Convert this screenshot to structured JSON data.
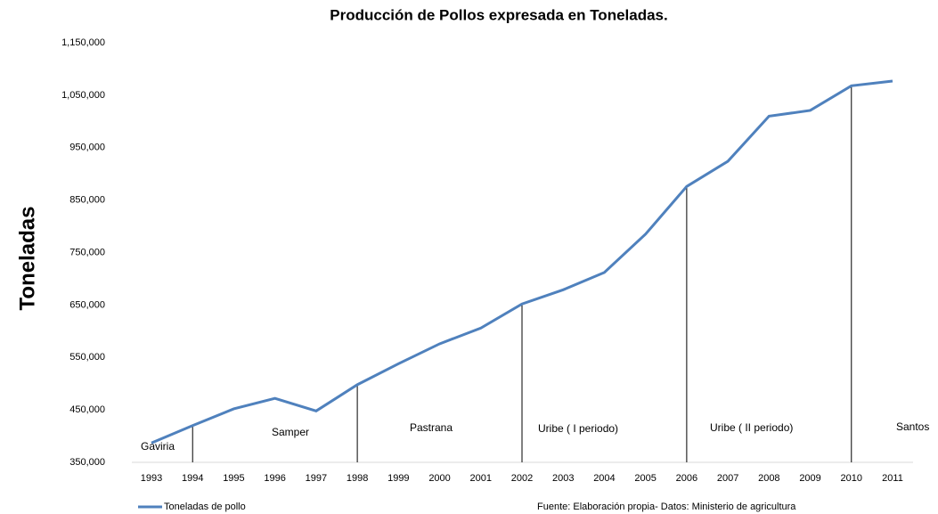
{
  "chart_data": {
    "type": "line",
    "title": "Producción de Pollos expresada en Toneladas.",
    "y_label": "Toneladas",
    "categories": [
      "1993",
      "1994",
      "1995",
      "1996",
      "1997",
      "1998",
      "1999",
      "2000",
      "2001",
      "2002",
      "2003",
      "2004",
      "2005",
      "2006",
      "2007",
      "2008",
      "2009",
      "2010",
      "2011"
    ],
    "series": [
      {
        "name": "Toneladas de pollo",
        "color": "#4f81bd",
        "values": [
          387000,
          420000,
          452000,
          472000,
          448000,
          498000,
          538000,
          576000,
          606000,
          652000,
          679000,
          712000,
          785000,
          876000,
          924000,
          1010000,
          1021000,
          1068000,
          1077000
        ]
      }
    ],
    "ylim": [
      350000,
      1150000
    ],
    "yticks": [
      {
        "value": 350000,
        "label": "350,000"
      },
      {
        "value": 450000,
        "label": "450,000"
      },
      {
        "value": 550000,
        "label": "550,000"
      },
      {
        "value": 650000,
        "label": "650,000"
      },
      {
        "value": 750000,
        "label": "750,000"
      },
      {
        "value": 850000,
        "label": "850,000"
      },
      {
        "value": 950000,
        "label": "950,000"
      },
      {
        "value": 1050000,
        "label": "1,050,000"
      },
      {
        "value": 1150000,
        "label": "1,150,000"
      }
    ],
    "grid": false,
    "annotations": [
      "Gaviria",
      "Samper",
      "Pastrana",
      "Uribe ( I periodo)",
      "Uribe ( II periodo)",
      "Santos"
    ],
    "source": "Fuente: Elaboración  propia-  Datos: Ministerio de agricultura"
  }
}
